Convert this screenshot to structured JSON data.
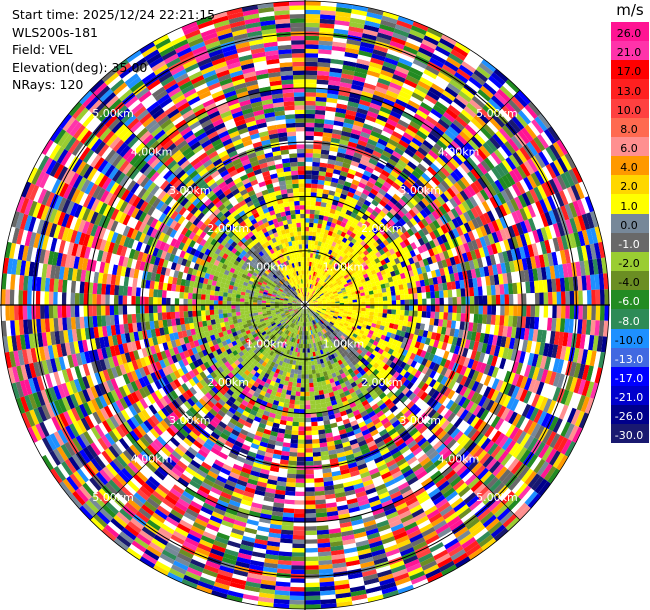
{
  "header": {
    "start_time": "Start time: 2025/12/24 22:21:15",
    "instrument": "WLS200s-181",
    "field": "Field: VEL",
    "elevation": "Elevation(deg): 35.00",
    "nrays": "NRays: 120"
  },
  "colorbar": {
    "unit": "m/s",
    "levels": [
      {
        "label": "26.0",
        "color": "#ff1493"
      },
      {
        "label": "21.0",
        "color": "#ff33aa"
      },
      {
        "label": "17.0",
        "color": "#ff0000"
      },
      {
        "label": "13.0",
        "color": "#ff2020"
      },
      {
        "label": "10.0",
        "color": "#ff4040"
      },
      {
        "label": "8.0",
        "color": "#ff6a50"
      },
      {
        "label": "6.0",
        "color": "#ff9090"
      },
      {
        "label": "4.0",
        "color": "#ff9900"
      },
      {
        "label": "2.0",
        "color": "#ffd700"
      },
      {
        "label": "1.0",
        "color": "#ffff00"
      },
      {
        "label": "0.0",
        "color": "#778899"
      },
      {
        "label": "-1.0",
        "color": "#696969"
      },
      {
        "label": "-2.0",
        "color": "#9acd32"
      },
      {
        "label": "-4.0",
        "color": "#6b8e23"
      },
      {
        "label": "-6.0",
        "color": "#228b22"
      },
      {
        "label": "-8.0",
        "color": "#2e8b57"
      },
      {
        "label": "-10.0",
        "color": "#1e90ff"
      },
      {
        "label": "-13.0",
        "color": "#4169e1"
      },
      {
        "label": "-17.0",
        "color": "#0000ff"
      },
      {
        "label": "-21.0",
        "color": "#0000cd"
      },
      {
        "label": "-26.0",
        "color": "#00008b"
      },
      {
        "label": "-30.0",
        "color": "#191970"
      }
    ]
  },
  "chart_data": {
    "type": "heatmap",
    "projection": "polar-ppi",
    "field": "VEL",
    "units": "m/s",
    "elevation_deg": 35.0,
    "n_rays": 120,
    "range_rings_km": [
      1,
      2,
      3,
      4,
      5
    ],
    "ring_labels": [
      "1.00km",
      "2.00km",
      "3.00km",
      "4.00km",
      "5.00km"
    ],
    "near_range_pattern": "negative (green) velocities to the north-west, positive (yellow) velocities to the south-east within about 1.5 km; noisy multicolour returns beyond",
    "value_range": [
      -30.0,
      26.0
    ]
  }
}
